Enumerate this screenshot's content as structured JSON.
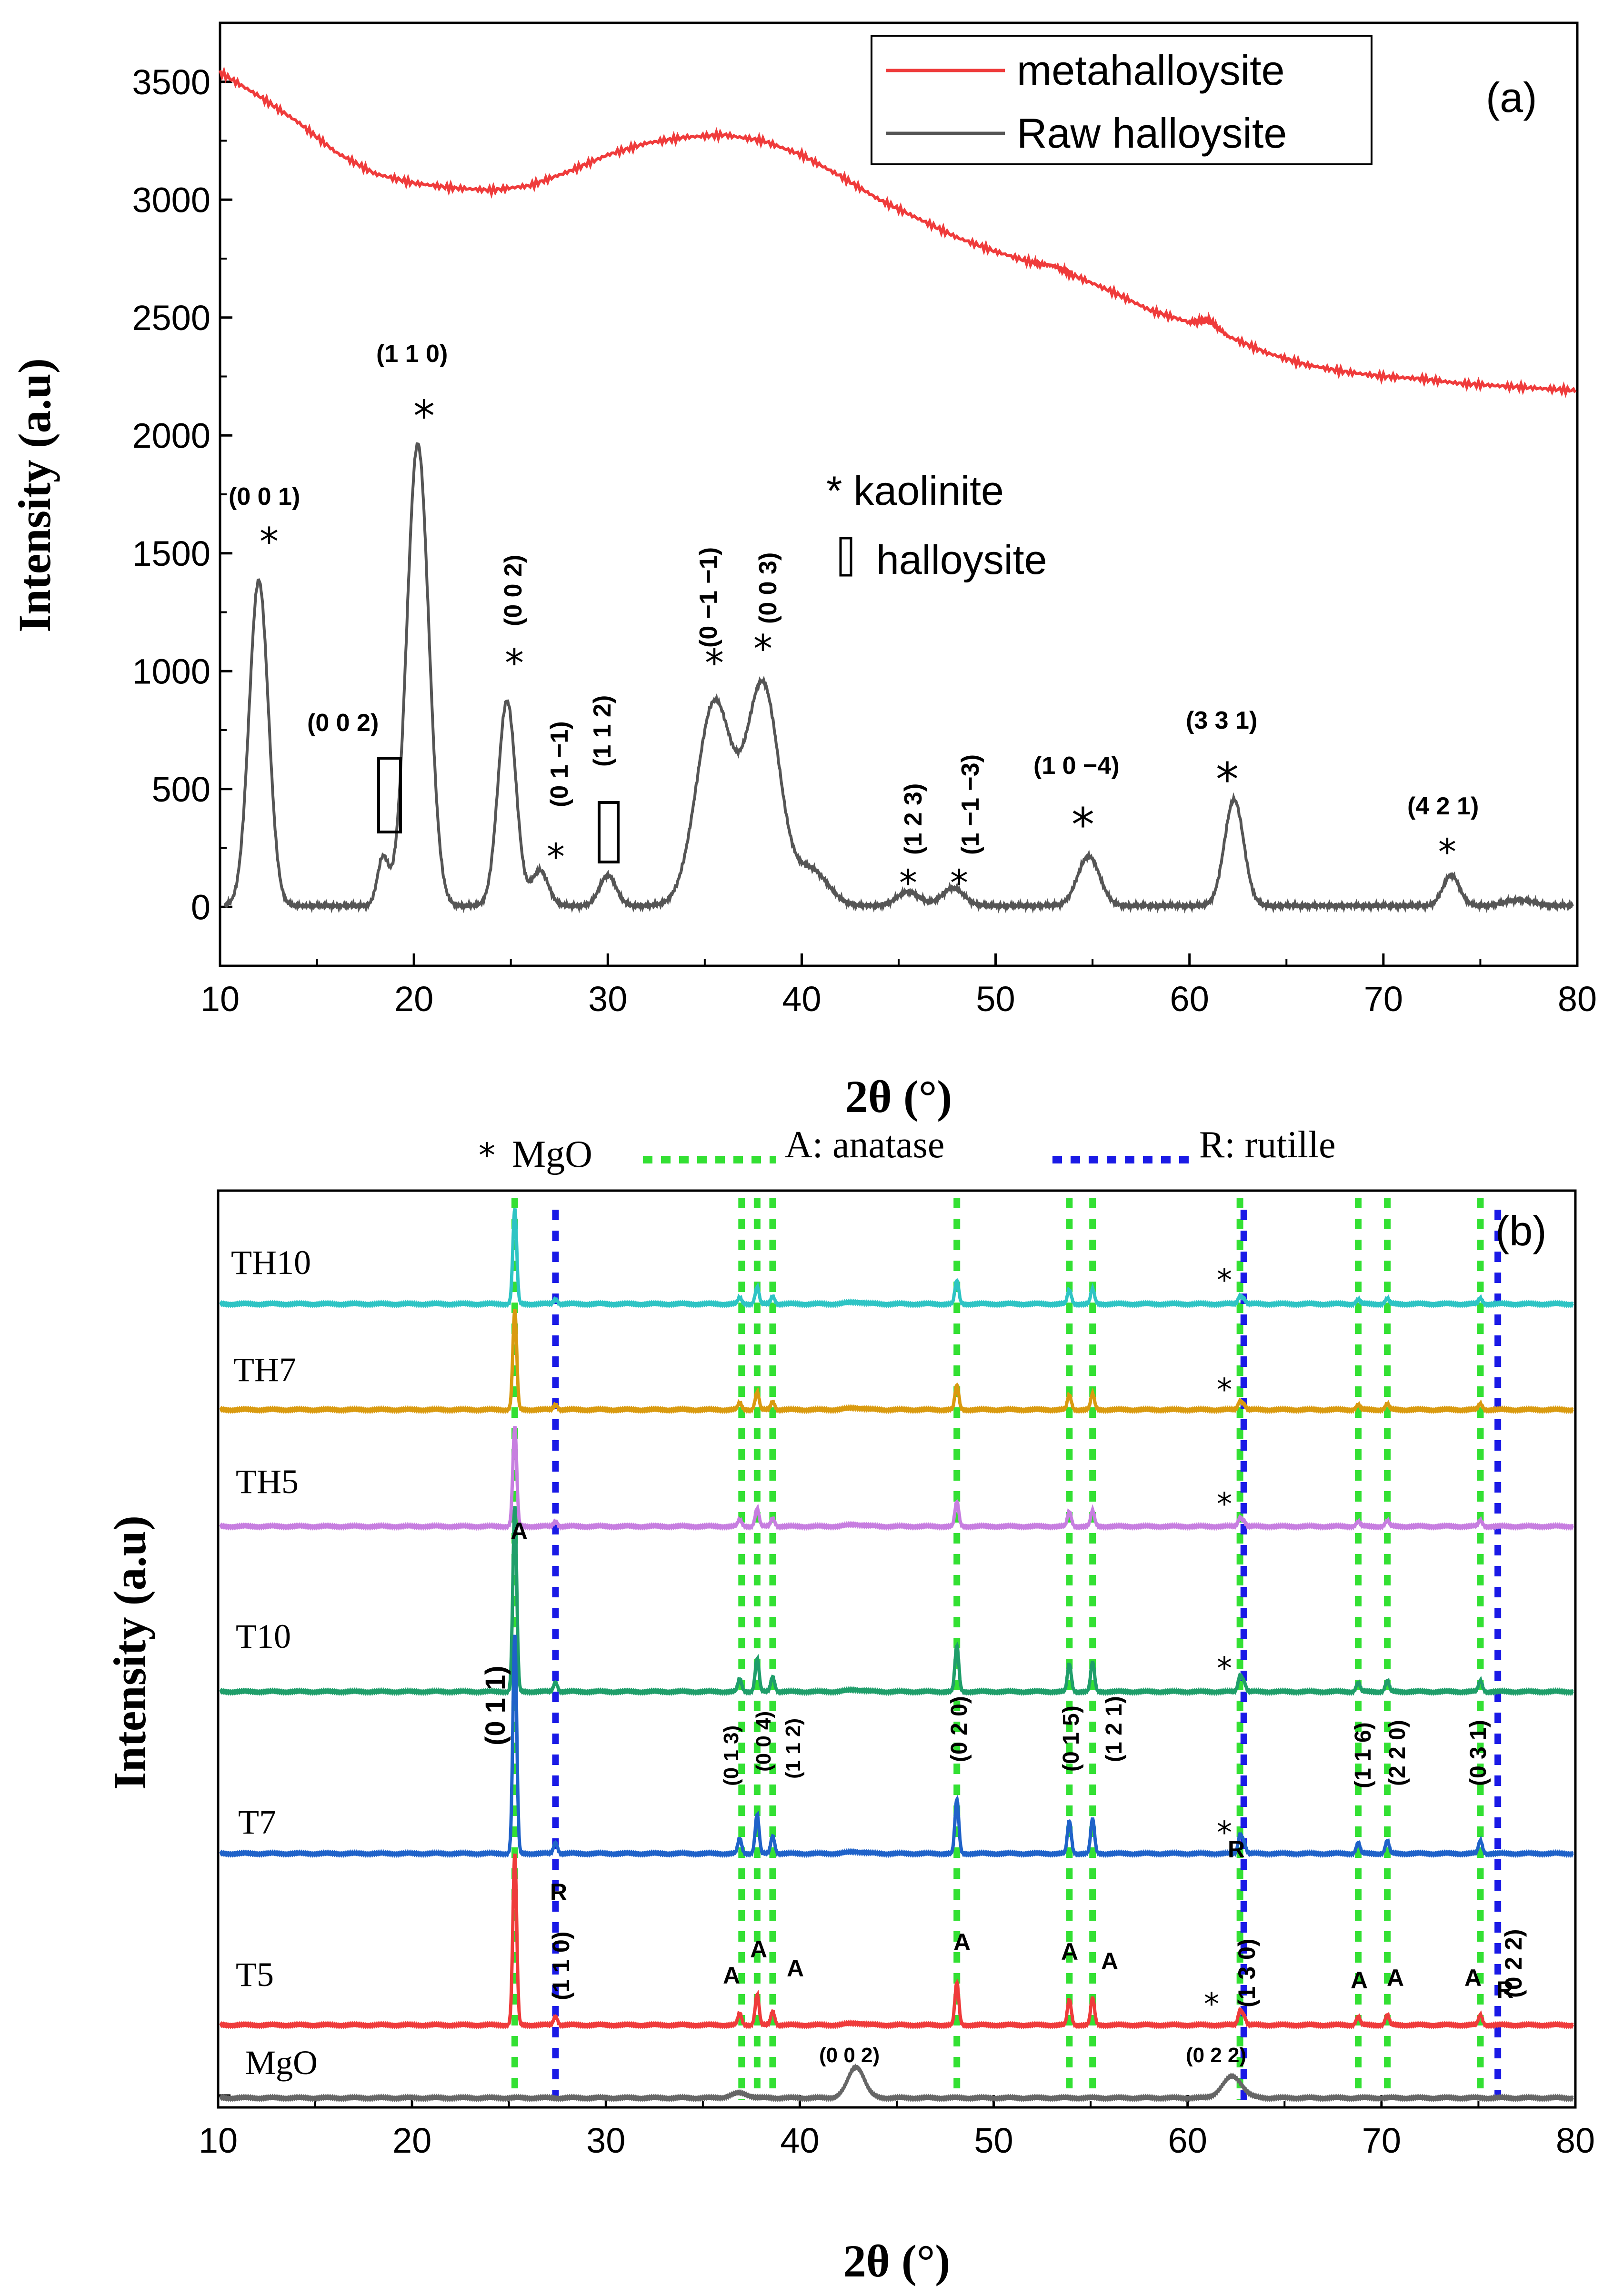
{
  "chart_data": [
    {
      "panel": "(a)",
      "type": "line",
      "xlabel": "2θ (°)",
      "ylabel": "Intensity (a.u)",
      "xlim": [
        10,
        80
      ],
      "ylim": [
        -250,
        3750
      ],
      "x_ticks": [
        "10",
        "20",
        "30",
        "40",
        "50",
        "60",
        "70",
        "80"
      ],
      "y_ticks": [
        "0",
        "500",
        "1000",
        "1500",
        "2000",
        "2500",
        "3000",
        "3500"
      ],
      "legend": [
        "metahalloysite",
        "Raw halloysite"
      ],
      "series": [
        {
          "name": "metahalloysite",
          "color": "#ef3b3b",
          "points": [
            [
              10,
              3540
            ],
            [
              12,
              3440
            ],
            [
              14,
              3330
            ],
            [
              16,
              3200
            ],
            [
              18,
              3110
            ],
            [
              20,
              3070
            ],
            [
              22,
              3050
            ],
            [
              24,
              3040
            ],
            [
              26,
              3060
            ],
            [
              28,
              3120
            ],
            [
              30,
              3190
            ],
            [
              32,
              3240
            ],
            [
              34,
              3265
            ],
            [
              36,
              3275
            ],
            [
              38,
              3250
            ],
            [
              40,
              3190
            ],
            [
              42,
              3100
            ],
            [
              44,
              3000
            ],
            [
              46,
              2920
            ],
            [
              48,
              2840
            ],
            [
              50,
              2780
            ],
            [
              52,
              2730
            ],
            [
              53,
              2720
            ],
            [
              54,
              2680
            ],
            [
              56,
              2610
            ],
            [
              58,
              2530
            ],
            [
              60,
              2480
            ],
            [
              61,
              2490
            ],
            [
              62,
              2420
            ],
            [
              64,
              2350
            ],
            [
              66,
              2300
            ],
            [
              68,
              2270
            ],
            [
              70,
              2250
            ],
            [
              72,
              2240
            ],
            [
              74,
              2220
            ],
            [
              76,
              2210
            ],
            [
              78,
              2200
            ],
            [
              80,
              2190
            ]
          ]
        },
        {
          "name": "Raw halloysite",
          "color": "#555555",
          "peaks": [
            [
              12.0,
              1380,
              0.7
            ],
            [
              18.4,
              200,
              0.4
            ],
            [
              20.2,
              1960,
              0.8
            ],
            [
              24.8,
              870,
              0.65
            ],
            [
              26.5,
              150,
              0.6
            ],
            [
              30.0,
              130,
              0.6
            ],
            [
              35.5,
              860,
              1.3
            ],
            [
              38.0,
              930,
              1.2
            ],
            [
              40.5,
              150,
              1.2
            ],
            [
              45.5,
              60,
              0.8
            ],
            [
              47.8,
              75,
              0.8
            ],
            [
              54.8,
              210,
              0.8
            ],
            [
              62.3,
              450,
              0.7
            ],
            [
              73.5,
              130,
              0.6
            ],
            [
              77.0,
              25,
              1.0
            ]
          ],
          "baseline": 5
        }
      ],
      "annotations": {
        "hkl_001": "(0 0 1)",
        "hkl_110": "(1 1 0)",
        "hkl_002_h": "(0 0 2)",
        "hkl_002_k": "(0 0 2)",
        "hkl_01m1": "(0 1 −1)",
        "hkl_112": "(1 1 2)",
        "hkl_0m1m1": "(0 −1 −1)",
        "hkl_003": "(0 0 3)",
        "hkl_123": "(1 2 3)",
        "hkl_1m1m3": "(1 −1 −3)",
        "hkl_10m4": "(1 0 −4)",
        "hkl_331": "(3 3 1)",
        "hkl_421": "(4 2 1)",
        "key_kaolinite": "* kaolinite",
        "key_halloysite": "halloysite",
        "star": "*"
      }
    },
    {
      "panel": "(b)",
      "type": "line",
      "xlabel": "2θ (°)",
      "ylabel": "Intensity (a.u)",
      "xlim": [
        10,
        80
      ],
      "x_ticks": [
        "10",
        "20",
        "30",
        "40",
        "50",
        "60",
        "70",
        "80"
      ],
      "legend": {
        "mgo": "MgO",
        "mgo_symbol": "*",
        "anatase": "A: anatase",
        "rutile": "R: rutille"
      },
      "series": [
        {
          "name": "TH10",
          "color": "#2ec4c4"
        },
        {
          "name": "TH7",
          "color": "#d99a0f"
        },
        {
          "name": "TH5",
          "color": "#c77ee0"
        },
        {
          "name": "T10",
          "color": "#1f9e6a"
        },
        {
          "name": "T7",
          "color": "#1f62c9"
        },
        {
          "name": "T5",
          "color": "#ef3b3b"
        },
        {
          "name": "MgO",
          "color": "#666666"
        }
      ],
      "anatase_positions": [
        25.3,
        37.0,
        37.8,
        38.6,
        48.1,
        53.9,
        55.1,
        62.7,
        68.8,
        70.3,
        75.1
      ],
      "rutile_positions": [
        27.4,
        62.9,
        76.0
      ],
      "mgo_peaks": [
        [
          42.9,
          0.02
        ],
        [
          62.3,
          0.015
        ]
      ],
      "annotations": {
        "hkl_011": "(0 1 1)",
        "hkl_013": "(0 1 3)",
        "hkl_004": "(0 0 4)",
        "hkl_112": "(1 1 2)",
        "hkl_020": "(0 2 0)",
        "hkl_015": "(0 1 5)",
        "hkl_121": "(1 2 1)",
        "hkl_116": "(1 1 6)",
        "hkl_220": "(2 2 0)",
        "hkl_031": "(0 3 1)",
        "hkl_110": "(1 1 0)",
        "hkl_130": "(1 3 0)",
        "hkl_022": "(0 2 2)",
        "mgo_002": "(0 0 2)",
        "mgo_022": "(0 2 2)",
        "A": "A",
        "R": "R",
        "star": "*"
      }
    }
  ]
}
